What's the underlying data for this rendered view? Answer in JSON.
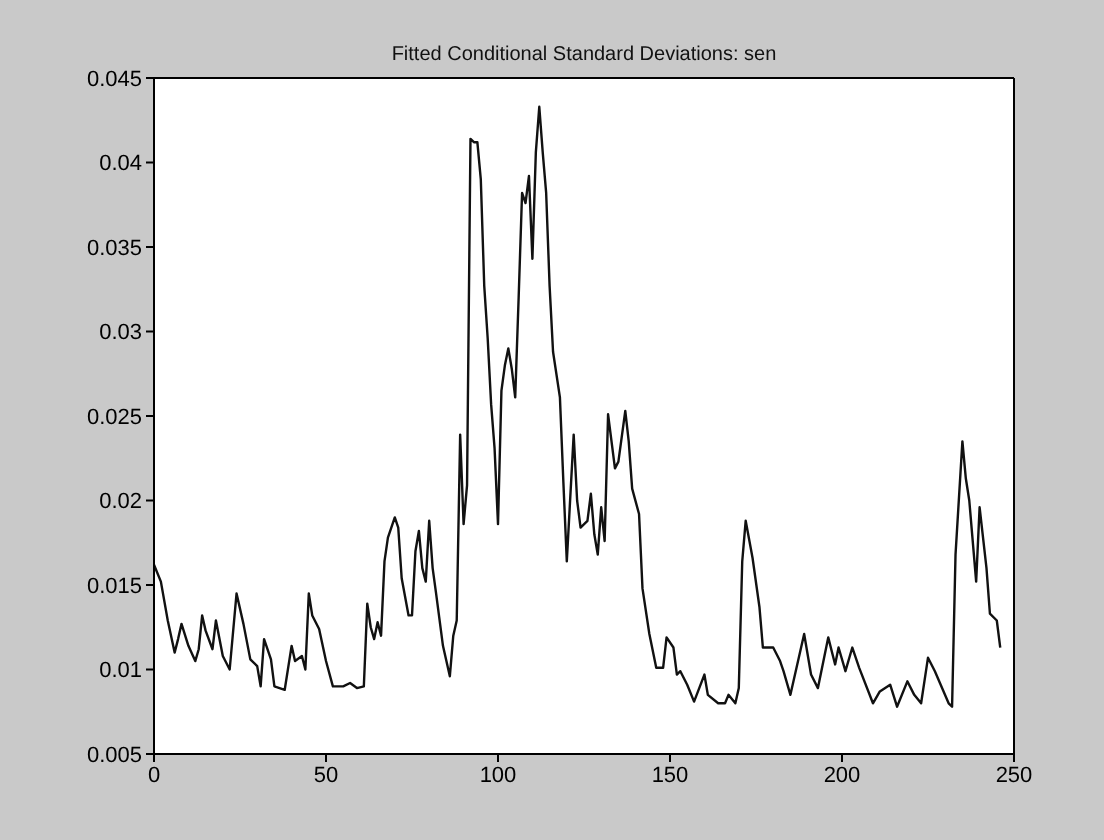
{
  "chart_data": {
    "type": "line",
    "title": "Fitted Conditional Standard Deviations: sen",
    "x": [
      0,
      2,
      4,
      6,
      7,
      8,
      10,
      12,
      13,
      14,
      15,
      17,
      18,
      20,
      22,
      24,
      26,
      28,
      30,
      31,
      32,
      34,
      35,
      38,
      40,
      41,
      43,
      44,
      45,
      46,
      48,
      50,
      52,
      55,
      57,
      59,
      61,
      62,
      63,
      64,
      65,
      66,
      67,
      68,
      70,
      71,
      72,
      74,
      75,
      76,
      77,
      78,
      79,
      80,
      81,
      82,
      84,
      86,
      87,
      88,
      89,
      90,
      91,
      92,
      93,
      94,
      95,
      96,
      97,
      98,
      99,
      100,
      101,
      102,
      103,
      104,
      105,
      106,
      107,
      108,
      109,
      110,
      111,
      112,
      113,
      114,
      115,
      116,
      118,
      119,
      120,
      122,
      123,
      124,
      126,
      127,
      128,
      129,
      130,
      131,
      132,
      134,
      135,
      137,
      138,
      139,
      141,
      142,
      144,
      146,
      148,
      149,
      151,
      152,
      153,
      155,
      157,
      160,
      161,
      164,
      166,
      167,
      169,
      170,
      171,
      172,
      174,
      176,
      177,
      180,
      182,
      183,
      185,
      189,
      191,
      193,
      196,
      198,
      199,
      201,
      203,
      205,
      209,
      211,
      214,
      216,
      219,
      221,
      223,
      225,
      227,
      231,
      232,
      233,
      235,
      236,
      237,
      239,
      240,
      242,
      243,
      245,
      246
    ],
    "series": [
      {
        "color": "#111111",
        "values": [
          0.0162,
          0.0152,
          0.0129,
          0.011,
          0.0118,
          0.0127,
          0.0114,
          0.0105,
          0.0112,
          0.0132,
          0.0123,
          0.0112,
          0.0129,
          0.0108,
          0.01,
          0.0145,
          0.0127,
          0.0106,
          0.0102,
          0.009,
          0.0118,
          0.0106,
          0.009,
          0.0088,
          0.0114,
          0.0105,
          0.0108,
          0.01,
          0.0145,
          0.0132,
          0.0124,
          0.0105,
          0.009,
          0.009,
          0.0092,
          0.0089,
          0.009,
          0.0139,
          0.0125,
          0.0118,
          0.0128,
          0.012,
          0.0164,
          0.0178,
          0.019,
          0.0184,
          0.0154,
          0.0132,
          0.0132,
          0.017,
          0.0182,
          0.016,
          0.0152,
          0.0188,
          0.016,
          0.0145,
          0.0114,
          0.0096,
          0.012,
          0.0129,
          0.0239,
          0.0186,
          0.0209,
          0.0414,
          0.0412,
          0.0412,
          0.039,
          0.0327,
          0.0296,
          0.0257,
          0.0231,
          0.0186,
          0.0265,
          0.028,
          0.029,
          0.0278,
          0.0261,
          0.032,
          0.0382,
          0.0376,
          0.0392,
          0.0343,
          0.0406,
          0.0433,
          0.0406,
          0.0382,
          0.0327,
          0.0288,
          0.0261,
          0.0211,
          0.0164,
          0.0239,
          0.02,
          0.0184,
          0.0188,
          0.0204,
          0.018,
          0.0168,
          0.0196,
          0.0176,
          0.0251,
          0.0219,
          0.0223,
          0.0253,
          0.0235,
          0.0207,
          0.0192,
          0.0148,
          0.0121,
          0.0101,
          0.0101,
          0.0119,
          0.0113,
          0.0097,
          0.0099,
          0.0091,
          0.0081,
          0.0097,
          0.0085,
          0.008,
          0.008,
          0.0085,
          0.008,
          0.0089,
          0.0164,
          0.0188,
          0.0166,
          0.0137,
          0.0113,
          0.0113,
          0.0105,
          0.0099,
          0.0085,
          0.0121,
          0.0097,
          0.0089,
          0.0119,
          0.0103,
          0.0113,
          0.0099,
          0.0113,
          0.0101,
          0.008,
          0.0087,
          0.0091,
          0.0078,
          0.0093,
          0.0085,
          0.008,
          0.0107,
          0.0099,
          0.008,
          0.0078,
          0.0168,
          0.0235,
          0.0213,
          0.02,
          0.0152,
          0.0196,
          0.016,
          0.0133,
          0.0129,
          0.0113
        ]
      }
    ],
    "xlim": [
      0,
      250
    ],
    "xticks": [
      0,
      50,
      100,
      150,
      200,
      250
    ],
    "ylim": [
      0.005,
      0.045
    ],
    "yticks": [
      0.005,
      0.01,
      0.015,
      0.02,
      0.025,
      0.03,
      0.035,
      0.04,
      0.045
    ]
  }
}
